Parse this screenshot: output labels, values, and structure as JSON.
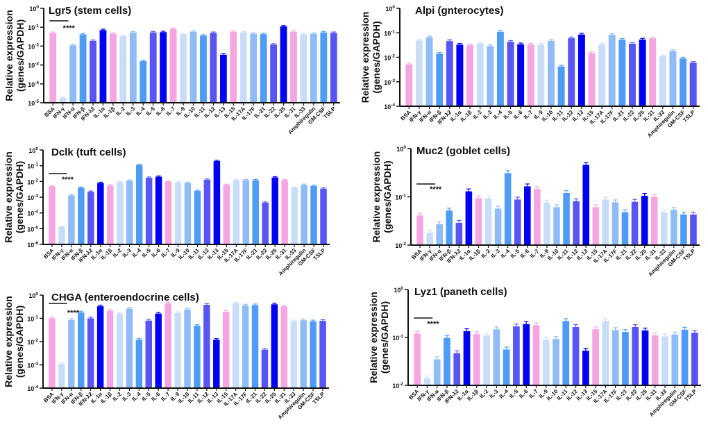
{
  "palette": [
    "#f5a6e2",
    "#c9ddf8",
    "#8fbcf7",
    "#4f9cf6",
    "#5955f4",
    "#0000f2"
  ],
  "categories": [
    "BSA",
    "IFN-γ",
    "IFN-α",
    "IFN-β",
    "IFN-λ2",
    "IL-1α",
    "IL-1β",
    "IL-2",
    "IL-3",
    "IL-4",
    "IL-5",
    "IL-6",
    "IL-7",
    "IL-9",
    "IL-10",
    "IL-11",
    "IL-12",
    "IL-13",
    "IL-15",
    "IL-17A",
    "IL-17F",
    "IL-21",
    "IL-22",
    "IL-25",
    "IL-31",
    "IL-33",
    "Amphiregulin",
    "GM-CSF",
    "TSLP"
  ],
  "ylabel_line1": "Relative expression",
  "ylabel_line2": "(genes/GAPDH)",
  "significance_label": "****",
  "chart_data": [
    {
      "type": "bar",
      "title": "Lgr5 (stem cells)",
      "yscale": "log",
      "ylim_exponents": [
        -5,
        0
      ],
      "significance": true,
      "values": [
        0.05,
        1.8e-05,
        0.011,
        0.042,
        0.019,
        0.07,
        0.045,
        0.034,
        0.053,
        0.0016,
        0.053,
        0.055,
        0.082,
        0.042,
        0.058,
        0.036,
        0.05,
        0.0035,
        0.058,
        0.053,
        0.045,
        0.043,
        0.012,
        0.11,
        0.058,
        0.042,
        0.045,
        0.053,
        0.05
      ]
    },
    {
      "type": "bar",
      "title": "Alpi (gnterocytes)",
      "yscale": "log",
      "ylim_exponents": [
        -4,
        0
      ],
      "significance": false,
      "values": [
        0.0052,
        0.048,
        0.065,
        0.014,
        0.046,
        0.033,
        0.031,
        0.037,
        0.029,
        0.11,
        0.043,
        0.034,
        0.033,
        0.033,
        0.047,
        0.0042,
        0.06,
        0.085,
        0.015,
        0.033,
        0.082,
        0.052,
        0.036,
        0.053,
        0.06,
        0.011,
        0.018,
        0.009,
        0.006
      ]
    },
    {
      "type": "bar",
      "title": "Dclk (tuft cells)",
      "yscale": "log",
      "ylim_exponents": [
        -6,
        0
      ],
      "significance": true,
      "values": [
        0.005,
        1.3e-05,
        0.0013,
        0.004,
        0.0022,
        0.008,
        0.0055,
        0.009,
        0.011,
        0.11,
        0.017,
        0.02,
        0.01,
        0.0085,
        0.008,
        0.0025,
        0.013,
        0.2,
        0.006,
        0.012,
        0.012,
        0.012,
        0.00045,
        0.018,
        0.012,
        0.004,
        0.006,
        0.0052,
        0.0035
      ]
    },
    {
      "type": "bar",
      "title": "Muc2 (goblet cells)",
      "yscale": "log",
      "ylim_exponents": [
        -2,
        0
      ],
      "significance": true,
      "values": [
        0.041,
        0.018,
        0.027,
        0.052,
        0.029,
        0.13,
        0.093,
        0.093,
        0.057,
        0.31,
        0.088,
        0.165,
        0.145,
        0.076,
        0.061,
        0.12,
        0.081,
        0.46,
        0.061,
        0.088,
        0.077,
        0.048,
        0.079,
        0.105,
        0.1,
        0.048,
        0.054,
        0.043,
        0.043
      ]
    },
    {
      "type": "bar",
      "title": "CHGA  (enteroendocrine cells)",
      "yscale": "log",
      "ylim_exponents": [
        -4,
        0
      ],
      "significance": true,
      "values": [
        0.1,
        0.0011,
        0.085,
        0.18,
        0.1,
        0.33,
        0.21,
        0.16,
        0.26,
        0.012,
        0.08,
        0.16,
        0.44,
        0.17,
        0.24,
        0.048,
        0.38,
        0.012,
        0.19,
        0.45,
        0.36,
        0.37,
        0.0045,
        0.4,
        0.33,
        0.075,
        0.083,
        0.075,
        0.078
      ]
    },
    {
      "type": "bar",
      "title": "Lyz1 (paneth cells)",
      "yscale": "log",
      "ylim_exponents": [
        -2,
        0
      ],
      "significance": true,
      "values": [
        0.12,
        0.014,
        0.035,
        0.098,
        0.047,
        0.135,
        0.117,
        0.11,
        0.148,
        0.056,
        0.17,
        0.19,
        0.18,
        0.09,
        0.093,
        0.22,
        0.165,
        0.053,
        0.148,
        0.22,
        0.143,
        0.13,
        0.165,
        0.14,
        0.11,
        0.105,
        0.115,
        0.145,
        0.125
      ]
    }
  ]
}
